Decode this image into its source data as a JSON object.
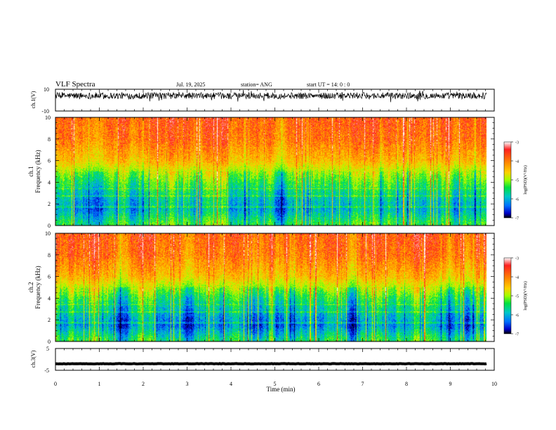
{
  "header": {
    "title": "VLF Spectra",
    "date": "Jul. 19, 2025",
    "station": "station= ANG",
    "start": "start  UT =   14: 0  : 0"
  },
  "chart_data": [
    {
      "type": "line",
      "panel": "ch1-waveform",
      "ylabel": "ch.1(V)",
      "ylim": [
        -10,
        10
      ],
      "y_ticks": [
        "10",
        "-10"
      ],
      "xlim": [
        0,
        10
      ],
      "baseline_value": 4,
      "noise_amplitude": 3,
      "data_end_min": 9.83
    },
    {
      "type": "heatmap",
      "panel": "ch1-spectrogram",
      "ylabel_top": "ch.1",
      "ylabel": "Frequency  (kHz)",
      "ylim": [
        0,
        10
      ],
      "y_ticks": [
        "0",
        "2",
        "4",
        "6",
        "8",
        "10"
      ],
      "xlim": [
        0,
        10
      ],
      "data_end_min": 9.83,
      "colorbar": {
        "label": "log(PSD)(V²/Hz)",
        "range": [
          -7,
          -3
        ],
        "ticks": [
          "-3",
          "-4",
          "-5",
          "-6",
          "-7"
        ],
        "colors": [
          "#ffffff",
          "#ff2020",
          "#ff8c00",
          "#ffd000",
          "#a0ff00",
          "#00e040",
          "#00c8c8",
          "#0070ff",
          "#0000c8",
          "#000000"
        ]
      },
      "spectrum_profile": [
        {
          "freq_khz": 0.2,
          "log_psd": -5.2
        },
        {
          "freq_khz": 1.5,
          "log_psd": -5.8
        },
        {
          "freq_khz": 2.5,
          "log_psd": -5.6
        },
        {
          "freq_khz": 4.0,
          "log_psd": -5.1
        },
        {
          "freq_khz": 5.0,
          "log_psd": -4.7
        },
        {
          "freq_khz": 6.0,
          "log_psd": -4.2
        },
        {
          "freq_khz": 8.0,
          "log_psd": -3.8
        },
        {
          "freq_khz": 10.0,
          "log_psd": -3.7
        }
      ]
    },
    {
      "type": "heatmap",
      "panel": "ch2-spectrogram",
      "ylabel_top": "ch.2",
      "ylabel": "Frequency  (kHz)",
      "ylim": [
        0,
        10
      ],
      "y_ticks": [
        "0",
        "2",
        "4",
        "6",
        "8",
        "10"
      ],
      "xlim": [
        0,
        10
      ],
      "data_end_min": 9.83,
      "colorbar": {
        "label": "log(PSD)(V²/Hz)",
        "range": [
          -7,
          -3
        ],
        "ticks": [
          "-3",
          "-4",
          "-5",
          "-6",
          "-7"
        ],
        "colors": [
          "#ffffff",
          "#ff2020",
          "#ff8c00",
          "#ffd000",
          "#a0ff00",
          "#00e040",
          "#00c8c8",
          "#0070ff",
          "#0000c8",
          "#000000"
        ]
      },
      "spectrum_profile": [
        {
          "freq_khz": 0.2,
          "log_psd": -5.3
        },
        {
          "freq_khz": 1.5,
          "log_psd": -6.0
        },
        {
          "freq_khz": 2.5,
          "log_psd": -5.7
        },
        {
          "freq_khz": 4.0,
          "log_psd": -5.2
        },
        {
          "freq_khz": 5.0,
          "log_psd": -4.7
        },
        {
          "freq_khz": 6.0,
          "log_psd": -4.2
        },
        {
          "freq_khz": 8.0,
          "log_psd": -3.8
        },
        {
          "freq_khz": 10.0,
          "log_psd": -3.7
        }
      ]
    },
    {
      "type": "line",
      "panel": "ch3-waveform",
      "ylabel": "ch.3(V)",
      "ylim": [
        -5,
        5
      ],
      "y_ticks": [
        "5",
        "-5"
      ],
      "xlim": [
        0,
        10
      ],
      "baseline_value": -2,
      "noise_amplitude": 0.1,
      "data_end_min": 9.83,
      "xlabel": "Time  (min)",
      "x_ticks": [
        "0",
        "1",
        "2",
        "3",
        "4",
        "5",
        "6",
        "7",
        "8",
        "9",
        "10"
      ]
    }
  ]
}
